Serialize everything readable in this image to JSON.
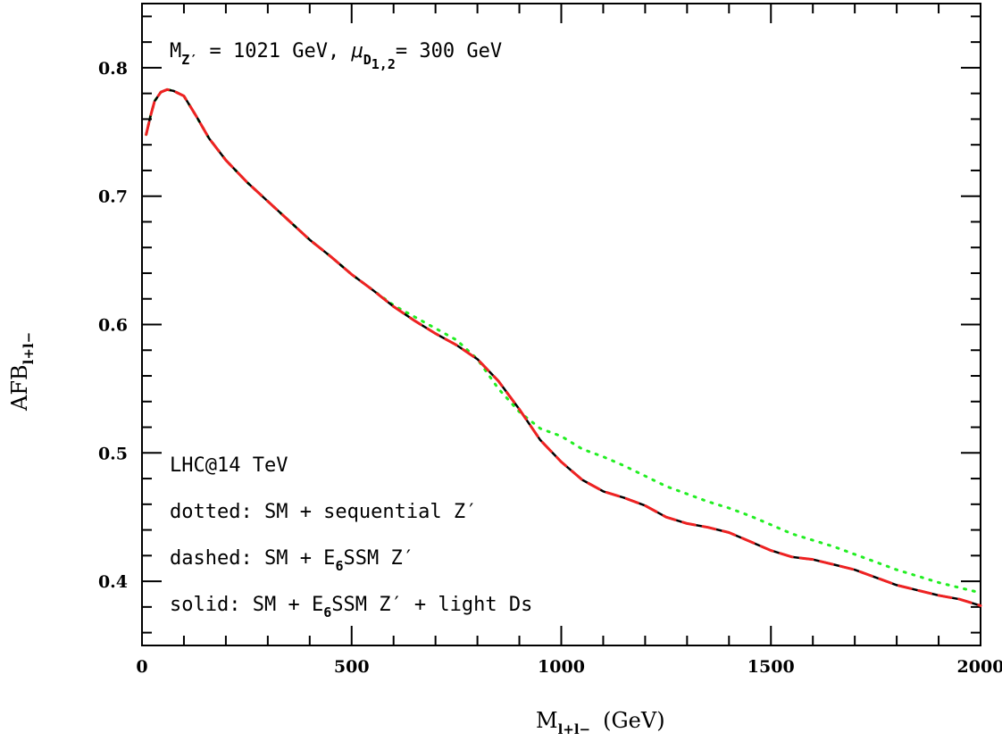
{
  "chart_data": {
    "type": "line",
    "xlabel": "M",
    "xlabel_sub": "l+l−",
    "xlabel_unit": "(GeV)",
    "ylabel": "AFB",
    "ylabel_sub": "l+l−",
    "xlim": [
      0,
      2000
    ],
    "ylim": [
      0.35,
      0.85
    ],
    "x_ticks": [
      0,
      500,
      1000,
      1500,
      2000
    ],
    "x_tick_labels": [
      "0",
      "500",
      "1000",
      "1500",
      "2000"
    ],
    "y_ticks": [
      0.4,
      0.5,
      0.6,
      0.7,
      0.8
    ],
    "y_tick_labels": [
      "0.4",
      "0.5",
      "0.6",
      "0.7",
      "0.8"
    ],
    "grid": false,
    "annotations": {
      "params": {
        "m_symbol": "M",
        "m_sub": "Z′",
        "m_text": " = 1021 GeV, ",
        "mu_symbol": "μ",
        "mu_sub": "D",
        "mu_subsub": "1,2",
        "mu_text": "= 300 GeV"
      },
      "collider": "LHC@14 TeV",
      "legend_dotted": "dotted: SM + sequential Z′",
      "legend_dashed_pre": "dashed: SM + E",
      "legend_dashed_sub": "6",
      "legend_dashed_post": "SSM Z′",
      "legend_solid_pre": "solid: SM + E",
      "legend_solid_sub": "6",
      "legend_solid_post": "SSM Z′ + light Ds"
    },
    "series": [
      {
        "style": "dotted",
        "color": "#22ee22",
        "x": [
          10,
          20,
          30,
          45,
          60,
          75,
          100,
          130,
          160,
          200,
          250,
          300,
          350,
          400,
          450,
          500,
          550,
          600,
          650,
          700,
          750,
          800,
          850,
          900,
          950,
          1000,
          1050,
          1100,
          1150,
          1200,
          1250,
          1300,
          1350,
          1400,
          1450,
          1500,
          1550,
          1600,
          1650,
          1700,
          1750,
          1800,
          1850,
          1900,
          1950,
          2000
        ],
        "y": [
          0.748,
          0.762,
          0.774,
          0.781,
          0.783,
          0.782,
          0.778,
          0.762,
          0.745,
          0.728,
          0.711,
          0.696,
          0.681,
          0.666,
          0.653,
          0.639,
          0.627,
          0.615,
          0.606,
          0.597,
          0.588,
          0.573,
          0.55,
          0.532,
          0.519,
          0.513,
          0.503,
          0.497,
          0.49,
          0.482,
          0.474,
          0.468,
          0.462,
          0.457,
          0.451,
          0.444,
          0.437,
          0.432,
          0.427,
          0.421,
          0.415,
          0.409,
          0.404,
          0.399,
          0.395,
          0.391
        ]
      },
      {
        "style": "dashed",
        "color": "#ee2222",
        "x": [
          10,
          20,
          30,
          45,
          60,
          75,
          100,
          130,
          160,
          200,
          250,
          300,
          350,
          400,
          450,
          500,
          550,
          600,
          650,
          700,
          750,
          800,
          850,
          900,
          950,
          1000,
          1050,
          1100,
          1150,
          1200,
          1250,
          1300,
          1350,
          1400,
          1450,
          1500,
          1550,
          1600,
          1650,
          1700,
          1750,
          1800,
          1850,
          1900,
          1950,
          2000
        ],
        "y": [
          0.748,
          0.762,
          0.774,
          0.781,
          0.783,
          0.782,
          0.778,
          0.762,
          0.745,
          0.728,
          0.711,
          0.696,
          0.681,
          0.666,
          0.653,
          0.639,
          0.627,
          0.614,
          0.603,
          0.593,
          0.584,
          0.573,
          0.556,
          0.534,
          0.51,
          0.493,
          0.479,
          0.47,
          0.465,
          0.459,
          0.45,
          0.445,
          0.442,
          0.438,
          0.431,
          0.424,
          0.419,
          0.417,
          0.413,
          0.409,
          0.403,
          0.397,
          0.393,
          0.389,
          0.386,
          0.381
        ]
      },
      {
        "style": "solid",
        "color": "#000000",
        "x": [
          10,
          20,
          30,
          45,
          60,
          75,
          100,
          130,
          160,
          200,
          250,
          300,
          350,
          400,
          450,
          500,
          550,
          600,
          650,
          700,
          750,
          800,
          850,
          900,
          950,
          1000,
          1050,
          1100,
          1150,
          1200,
          1250,
          1300,
          1350,
          1400,
          1450,
          1500,
          1550,
          1600,
          1650,
          1700,
          1750,
          1800,
          1850,
          1900,
          1950,
          2000
        ],
        "y": [
          0.748,
          0.762,
          0.774,
          0.781,
          0.783,
          0.782,
          0.778,
          0.762,
          0.745,
          0.728,
          0.711,
          0.696,
          0.681,
          0.666,
          0.653,
          0.639,
          0.627,
          0.614,
          0.603,
          0.593,
          0.584,
          0.573,
          0.556,
          0.534,
          0.51,
          0.493,
          0.479,
          0.47,
          0.465,
          0.459,
          0.45,
          0.445,
          0.442,
          0.438,
          0.431,
          0.424,
          0.419,
          0.417,
          0.413,
          0.409,
          0.403,
          0.397,
          0.393,
          0.389,
          0.386,
          0.381
        ]
      }
    ]
  }
}
